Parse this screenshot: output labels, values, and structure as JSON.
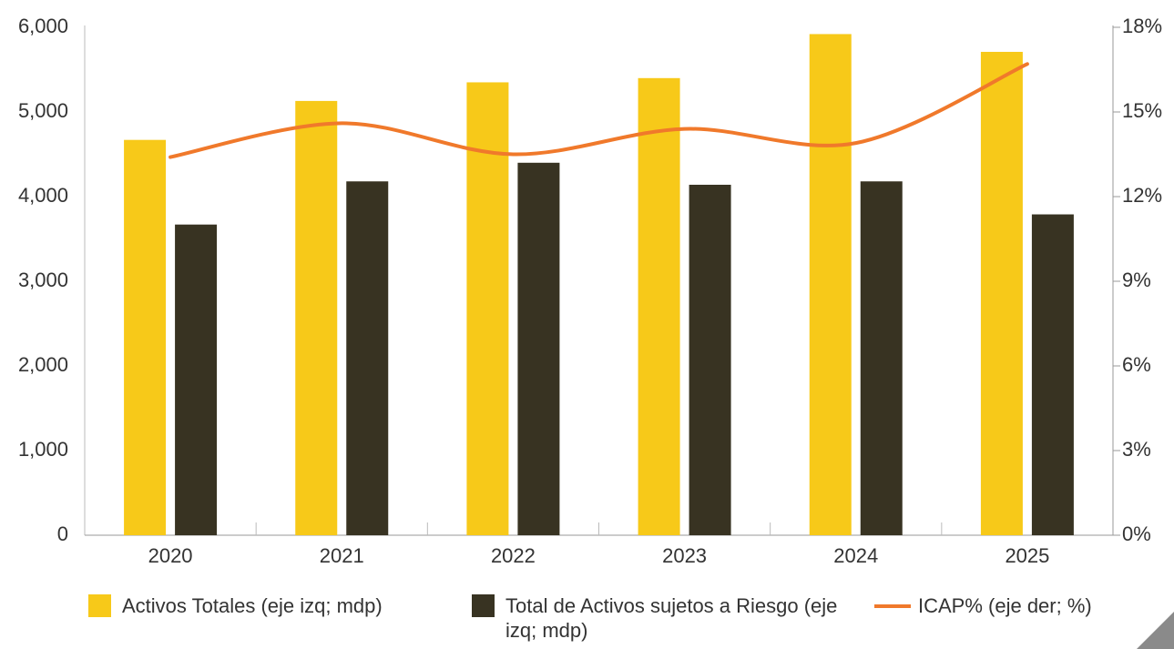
{
  "chart_data": {
    "type": "bar",
    "categories": [
      "2020",
      "2021",
      "2022",
      "2023",
      "2024",
      "2025"
    ],
    "series": [
      {
        "name": "Activos Totales (eje izq; mdp)",
        "type": "bar",
        "color": "#f7c919",
        "values": [
          4670,
          5130,
          5350,
          5400,
          5920,
          5710
        ]
      },
      {
        "name": "Total de Activos sujetos a Riesgo (eje izq; mdp)",
        "type": "bar",
        "color": "#383322",
        "values": [
          3670,
          4180,
          4400,
          4140,
          4180,
          3790
        ]
      },
      {
        "name": "ICAP% (eje der; %)",
        "type": "line",
        "axis": "y2",
        "color": "#f0792b",
        "values": [
          13.4,
          14.6,
          13.5,
          14.4,
          13.9,
          16.7
        ]
      }
    ],
    "ylim": [
      0,
      6000
    ],
    "yticks": [
      0,
      {
        "value": 1000,
        "label": "1,000"
      },
      {
        "value": 2000,
        "label": "2,000"
      },
      {
        "value": 3000,
        "label": "3,000"
      },
      {
        "value": 4000,
        "label": "4,000"
      },
      {
        "value": 5000,
        "label": "5,000"
      },
      {
        "value": 6000,
        "label": "6,000"
      }
    ],
    "y2lim": [
      0,
      18
    ],
    "y2ticks": [
      {
        "value": 0,
        "label": "0%"
      },
      {
        "value": 3,
        "label": "3%"
      },
      {
        "value": 6,
        "label": "6%"
      },
      {
        "value": 9,
        "label": "9%"
      },
      {
        "value": 12,
        "label": "12%"
      },
      {
        "value": 15,
        "label": "15%"
      },
      {
        "value": 18,
        "label": "18%"
      }
    ],
    "grid": false,
    "legend": "bottom"
  }
}
